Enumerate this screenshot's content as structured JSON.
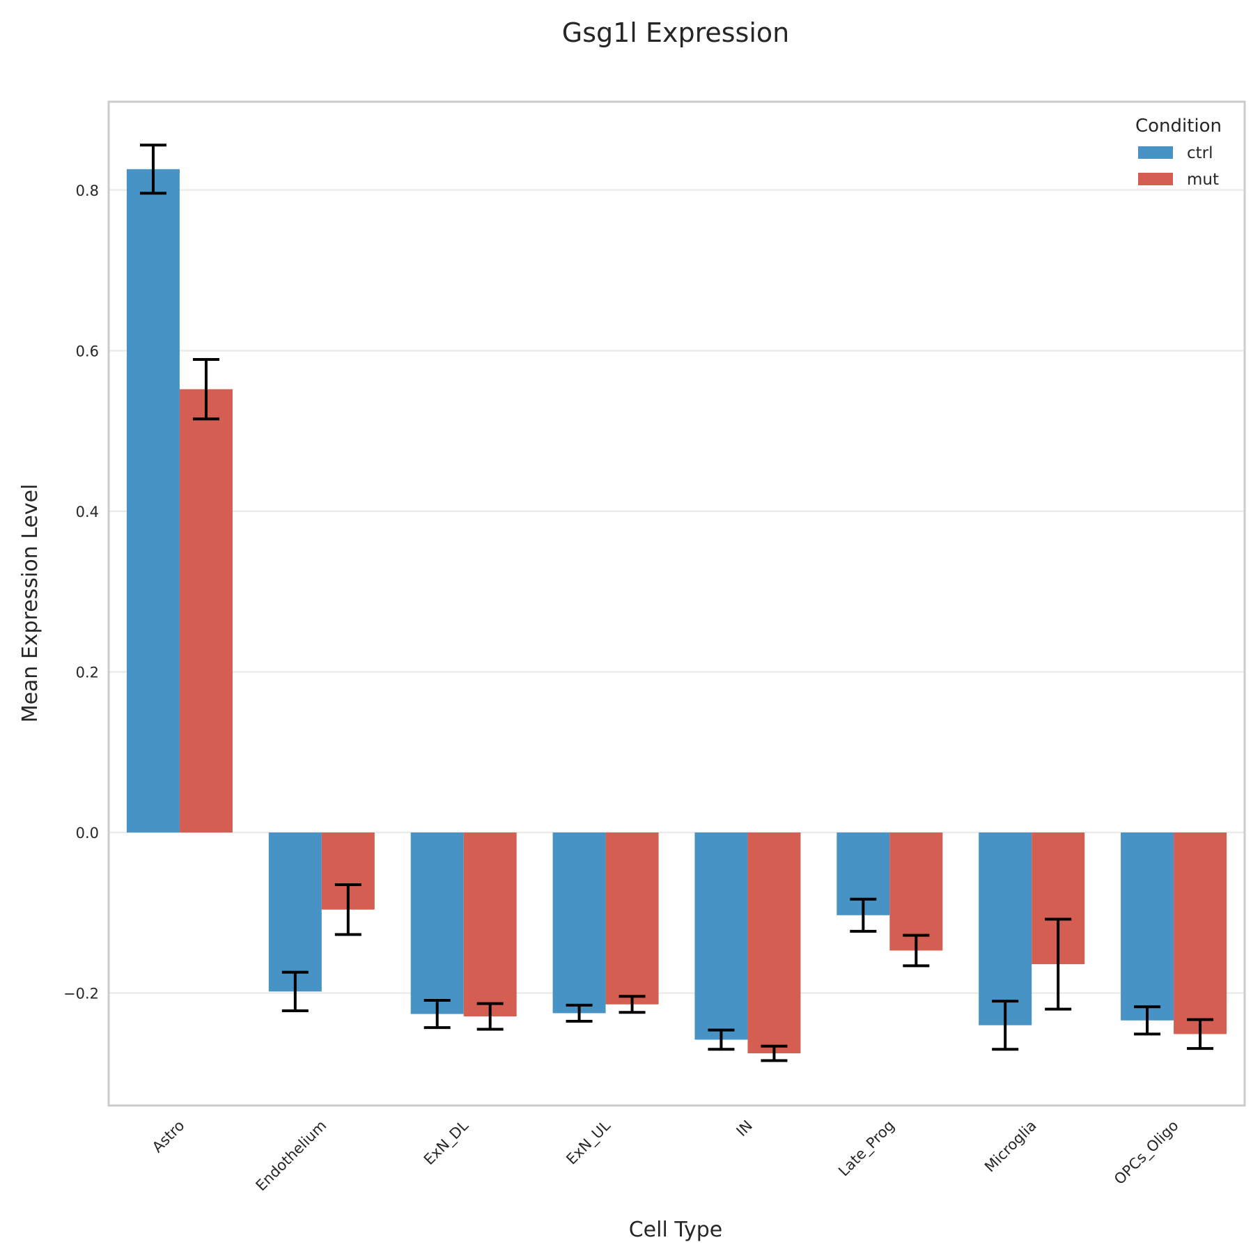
{
  "chart_data": {
    "type": "bar",
    "title": "Gsg1l Expression",
    "xlabel": "Cell Type",
    "ylabel": "Mean Expression Level",
    "categories": [
      "Astro",
      "Endothelium",
      "ExN_DL",
      "ExN_UL",
      "IN",
      "Late_Prog",
      "Microglia",
      "OPCs_Oligo"
    ],
    "series": [
      {
        "name": "ctrl",
        "color": "#4793c5",
        "values": [
          0.826,
          -0.198,
          -0.226,
          -0.225,
          -0.258,
          -0.103,
          -0.24,
          -0.234
        ],
        "error": [
          0.03,
          0.024,
          0.017,
          0.01,
          0.012,
          0.02,
          0.03,
          0.017
        ]
      },
      {
        "name": "mut",
        "color": "#d45e51",
        "values": [
          0.552,
          -0.096,
          -0.229,
          -0.214,
          -0.275,
          -0.147,
          -0.164,
          -0.251
        ],
        "error": [
          0.037,
          0.031,
          0.016,
          0.01,
          0.009,
          0.019,
          0.056,
          0.018
        ]
      }
    ],
    "ylim": [
      -0.34,
      0.91
    ],
    "yticks": [
      -0.2,
      0.0,
      0.2,
      0.4,
      0.6,
      0.8
    ],
    "ytick_labels": [
      "−0.2",
      "0.0",
      "0.2",
      "0.4",
      "0.6",
      "0.8"
    ],
    "grid": "horizontal",
    "legend": {
      "title": "Condition",
      "position": "top-right"
    }
  }
}
